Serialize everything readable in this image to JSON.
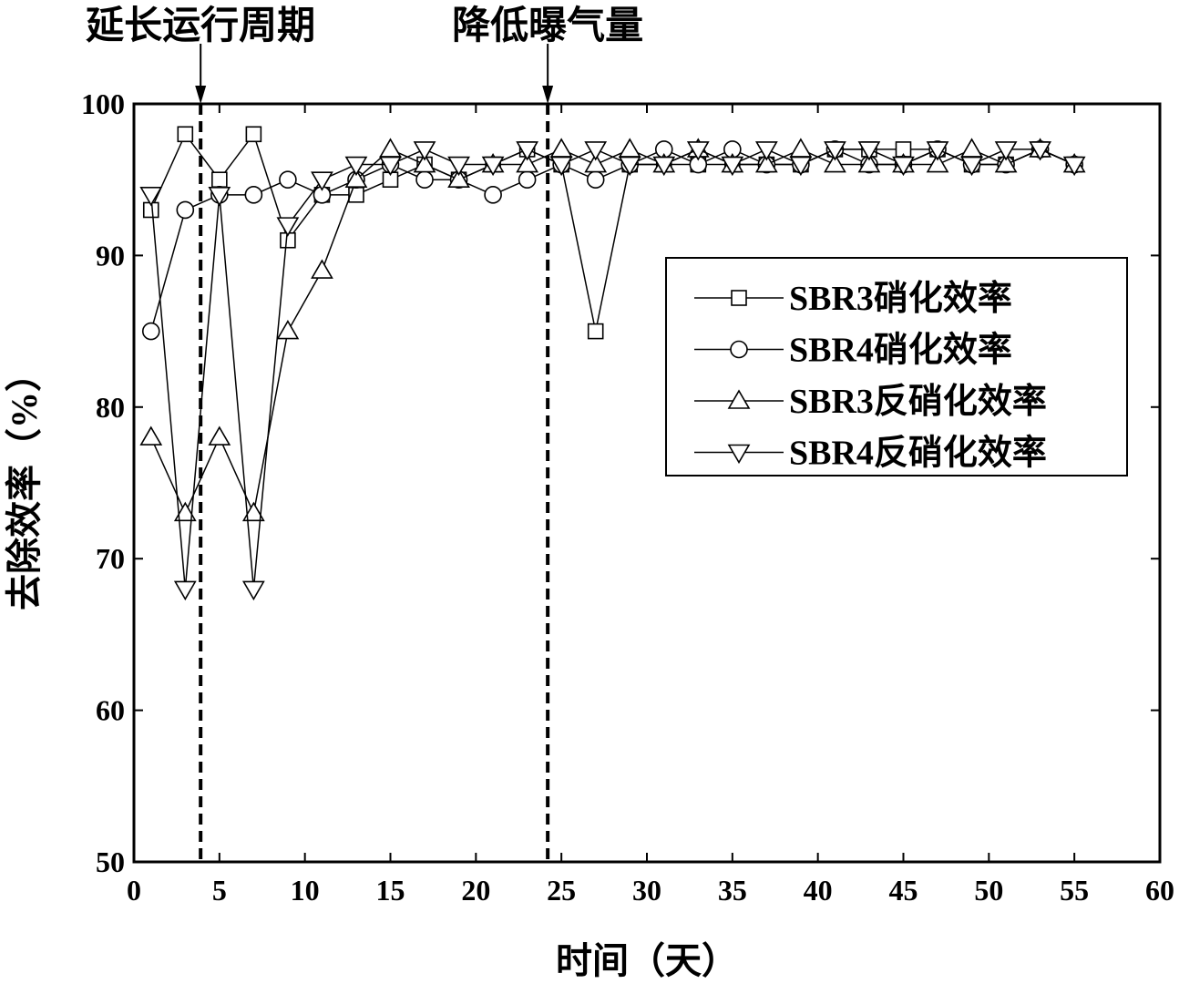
{
  "chart_data": {
    "type": "line",
    "x_label": "时间（天）",
    "y_label": "去除效率（%）",
    "x": [
      1,
      3,
      5,
      7,
      9,
      11,
      13,
      15,
      17,
      19,
      21,
      23,
      25,
      27,
      29,
      31,
      33,
      35,
      37,
      39,
      41,
      43,
      45,
      47,
      49,
      51,
      53,
      55
    ],
    "series": [
      {
        "name": "SBR3硝化效率",
        "marker": "square",
        "color": "#000000",
        "values": [
          93,
          98,
          95,
          98,
          91,
          94,
          94,
          95,
          96,
          95,
          96,
          97,
          96,
          85,
          96,
          96,
          96,
          96,
          96,
          96,
          97,
          97,
          97,
          97,
          96,
          96,
          97,
          96
        ]
      },
      {
        "name": "SBR4硝化效率",
        "marker": "circle",
        "color": "#000000",
        "values": [
          85,
          93,
          94,
          94,
          95,
          94,
          95,
          96,
          95,
          95,
          94,
          95,
          96,
          95,
          96,
          97,
          96,
          97,
          96,
          96,
          97,
          96,
          96,
          97,
          96,
          96,
          97,
          96
        ]
      },
      {
        "name": "SBR3反硝化效率",
        "marker": "triangle-up",
        "color": "#000000",
        "values": [
          78,
          73,
          78,
          73,
          85,
          89,
          95,
          97,
          96,
          95,
          96,
          96,
          97,
          96,
          97,
          96,
          97,
          96,
          96,
          97,
          96,
          96,
          96,
          96,
          97,
          96,
          97,
          96
        ]
      },
      {
        "name": "SBR4反硝化效率",
        "marker": "triangle-down",
        "color": "#000000",
        "values": [
          94,
          68,
          94,
          68,
          92,
          95,
          96,
          96,
          97,
          96,
          96,
          97,
          96,
          97,
          96,
          96,
          97,
          96,
          97,
          96,
          97,
          97,
          96,
          97,
          96,
          97,
          97,
          96
        ]
      }
    ],
    "annotations": [
      {
        "text": "延长运行周期",
        "x": 3.9
      },
      {
        "text": "降低曝气量",
        "x": 24.2
      }
    ],
    "xlim": [
      0,
      60
    ],
    "xticks": [
      0,
      5,
      10,
      15,
      20,
      25,
      30,
      35,
      40,
      45,
      50,
      55,
      60
    ],
    "ylim": [
      50,
      100
    ],
    "yticks": [
      50,
      60,
      70,
      80,
      90,
      100
    ],
    "legend": "right"
  }
}
